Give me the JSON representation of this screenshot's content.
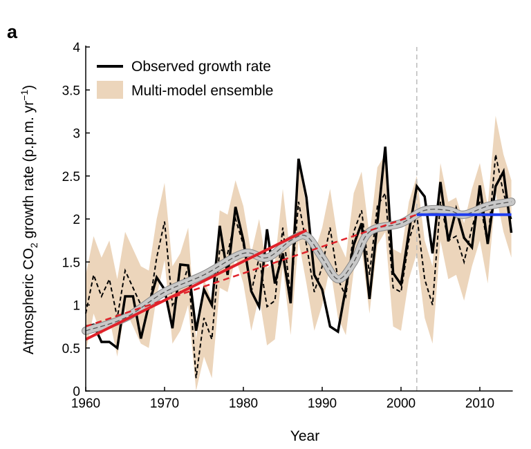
{
  "panel_label": "a",
  "chart_data": {
    "type": "line",
    "xlabel": "Year",
    "ylabel": "Atmospheric CO",
    "ylabel_sub": "2",
    "ylabel_rest": " growth rate (p.p.m. yr",
    "ylabel_sup": "−1",
    "ylabel_end": ")",
    "xlim": [
      1960,
      2014
    ],
    "ylim": [
      0,
      4
    ],
    "xticks": [
      "1960",
      "1970",
      "1980",
      "1990",
      "2000",
      "2010"
    ],
    "xtick_values": [
      1960,
      1970,
      1980,
      1990,
      2000,
      2010
    ],
    "yticks": [
      "0",
      "0.5",
      "1",
      "1.5",
      "2",
      "2.5",
      "3",
      "3.5",
      "4"
    ],
    "ytick_values": [
      0,
      0.5,
      1,
      1.5,
      2,
      2.5,
      3,
      3.5,
      4
    ],
    "grid": false,
    "legend_position": "top-left",
    "legend": [
      "Observed growth rate",
      "Multi-model ensemble"
    ],
    "colors": {
      "observed": "#000000",
      "ensemble": "#ecd5bb",
      "smooth": "#c8c8c8",
      "trend_red": "#e0222a",
      "trend_blue": "#1f3df0",
      "vline": "#bbbbbb"
    },
    "years": [
      1960,
      1961,
      1962,
      1963,
      1964,
      1965,
      1966,
      1967,
      1968,
      1969,
      1970,
      1971,
      1972,
      1973,
      1974,
      1975,
      1976,
      1977,
      1978,
      1979,
      1980,
      1981,
      1982,
      1983,
      1984,
      1985,
      1986,
      1987,
      1988,
      1989,
      1990,
      1991,
      1992,
      1993,
      1994,
      1995,
      1996,
      1997,
      1998,
      1999,
      2000,
      2001,
      2002,
      2003,
      2004,
      2005,
      2006,
      2007,
      2008,
      2009,
      2010,
      2011,
      2012,
      2013,
      2014
    ],
    "series": [
      {
        "name": "Observed growth rate",
        "values": [
          0.75,
          0.77,
          0.57,
          0.57,
          0.5,
          1.1,
          1.1,
          0.61,
          1.0,
          1.32,
          1.18,
          0.73,
          1.47,
          1.46,
          0.7,
          1.18,
          1.0,
          1.92,
          1.35,
          2.14,
          1.75,
          1.16,
          0.98,
          1.88,
          1.25,
          1.6,
          1.02,
          2.7,
          2.25,
          1.35,
          1.18,
          0.75,
          0.69,
          1.2,
          1.7,
          1.95,
          1.07,
          1.95,
          2.84,
          1.37,
          1.24,
          1.85,
          2.38,
          2.26,
          1.6,
          2.43,
          1.74,
          2.11,
          1.78,
          1.67,
          2.39,
          1.71,
          2.38,
          2.55,
          1.84
        ]
      },
      {
        "name": "Multi-model ensemble",
        "mean": [
          0.9,
          1.35,
          1.1,
          1.3,
          0.85,
          1.4,
          1.2,
          1.0,
          0.95,
          1.55,
          1.97,
          1.0,
          1.15,
          1.45,
          0.15,
          0.85,
          0.6,
          1.65,
          1.6,
          2.0,
          1.7,
          1.15,
          1.55,
          0.98,
          1.05,
          1.9,
          1.1,
          2.2,
          1.7,
          1.15,
          1.45,
          1.9,
          1.3,
          1.1,
          1.85,
          2.1,
          1.35,
          2.15,
          2.3,
          1.2,
          1.15,
          1.75,
          2.05,
          1.3,
          1.0,
          2.2,
          1.75,
          1.8,
          1.5,
          1.9,
          2.2,
          1.7,
          2.75,
          2.3,
          2.0
        ],
        "upper": [
          1.35,
          1.8,
          1.55,
          1.75,
          1.3,
          1.85,
          1.65,
          1.45,
          1.4,
          2.0,
          2.42,
          1.45,
          1.6,
          1.9,
          0.6,
          1.3,
          1.05,
          2.1,
          2.05,
          2.45,
          2.15,
          1.6,
          2.0,
          1.43,
          1.5,
          2.35,
          1.55,
          2.65,
          2.15,
          1.6,
          1.9,
          2.35,
          1.75,
          1.55,
          2.3,
          2.55,
          1.8,
          2.6,
          2.75,
          1.65,
          1.6,
          2.2,
          2.5,
          1.75,
          1.45,
          2.65,
          2.2,
          2.25,
          1.95,
          2.35,
          2.65,
          2.15,
          3.2,
          2.75,
          2.45
        ],
        "lower": [
          0.45,
          0.9,
          0.65,
          0.85,
          0.4,
          0.95,
          0.75,
          0.55,
          0.5,
          1.1,
          1.52,
          0.55,
          0.7,
          1.0,
          0,
          0.4,
          0.15,
          1.2,
          1.15,
          1.55,
          1.25,
          0.7,
          1.1,
          0.53,
          0.6,
          1.45,
          0.65,
          1.75,
          1.25,
          0.7,
          1.0,
          1.45,
          0.85,
          0.65,
          1.4,
          1.65,
          0.9,
          1.7,
          1.85,
          0.75,
          0.7,
          1.3,
          1.6,
          0.85,
          0.55,
          1.75,
          1.3,
          1.35,
          1.05,
          1.45,
          1.75,
          1.25,
          2.3,
          1.85,
          1.55
        ]
      }
    ],
    "smooth_trend": {
      "x": [
        1960,
        1965,
        1970,
        1975,
        1980,
        1983,
        1986,
        1988,
        1990,
        1992,
        1994,
        1996,
        2000,
        2003,
        2006,
        2008,
        2011,
        2014
      ],
      "y": [
        0.7,
        0.85,
        1.15,
        1.35,
        1.6,
        1.55,
        1.75,
        1.8,
        1.55,
        1.3,
        1.5,
        1.85,
        1.95,
        2.1,
        2.1,
        2.05,
        2.15,
        2.2
      ]
    },
    "trend_lines": [
      {
        "style": "solid",
        "color": "#e0222a",
        "x": [
          1960,
          1988
        ],
        "y": [
          0.6,
          1.87
        ]
      },
      {
        "style": "dashed",
        "color": "#e0222a",
        "x": [
          1960,
          2002
        ],
        "y": [
          0.75,
          2.05
        ]
      },
      {
        "style": "solid",
        "color": "#1f3df0",
        "x": [
          2002,
          2014
        ],
        "y": [
          2.05,
          2.05
        ]
      }
    ],
    "vertical_line": {
      "x": 2002,
      "style": "dashed"
    }
  }
}
